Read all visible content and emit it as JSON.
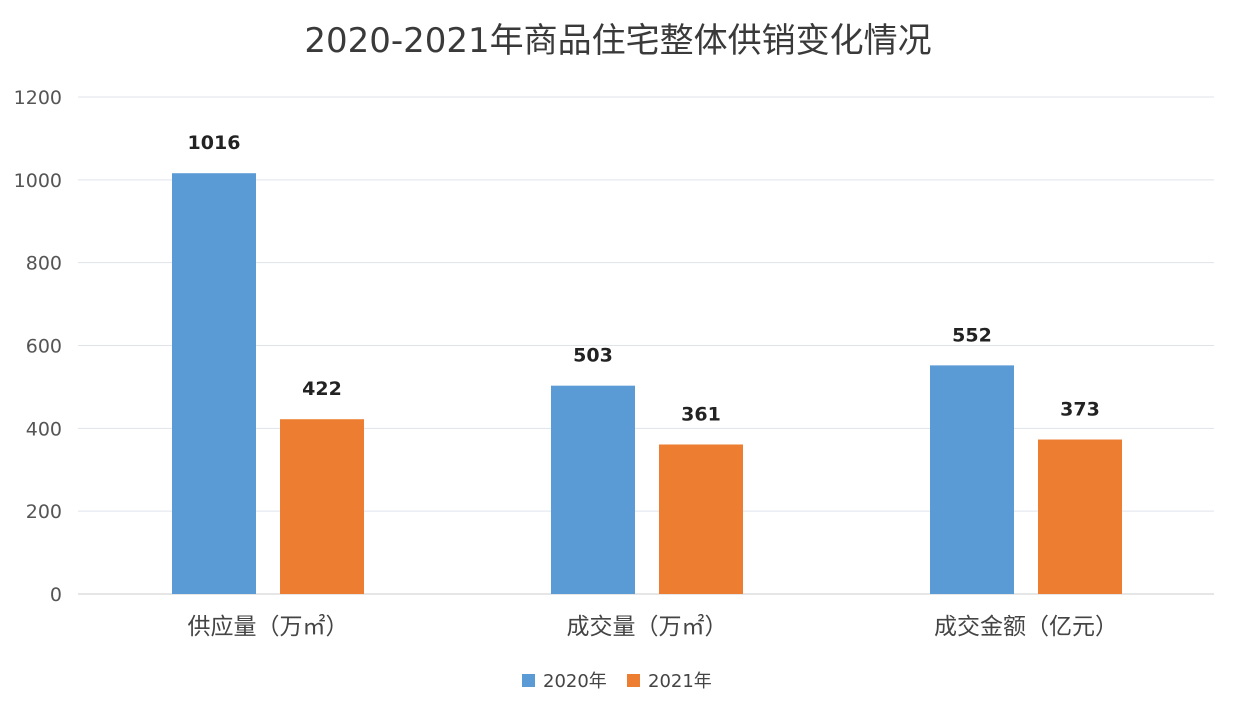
{
  "chart_data": {
    "type": "bar",
    "title": "2020-2021年商品住宅整体供销变化情况",
    "categories": [
      "供应量（万㎡）",
      "成交量（万㎡）",
      "成交金额（亿元）"
    ],
    "series": [
      {
        "name": "2020年",
        "color": "#5b9bd5",
        "values": [
          1016,
          503,
          552
        ]
      },
      {
        "name": "2021年",
        "color": "#ed7d31",
        "values": [
          422,
          361,
          373
        ]
      }
    ],
    "yticks": [
      "0",
      "200",
      "400",
      "600",
      "800",
      "1000",
      "1200"
    ],
    "ylim": [
      0,
      1200
    ],
    "grid": true,
    "legend": "bottom-center",
    "xlabel": "",
    "ylabel": ""
  }
}
